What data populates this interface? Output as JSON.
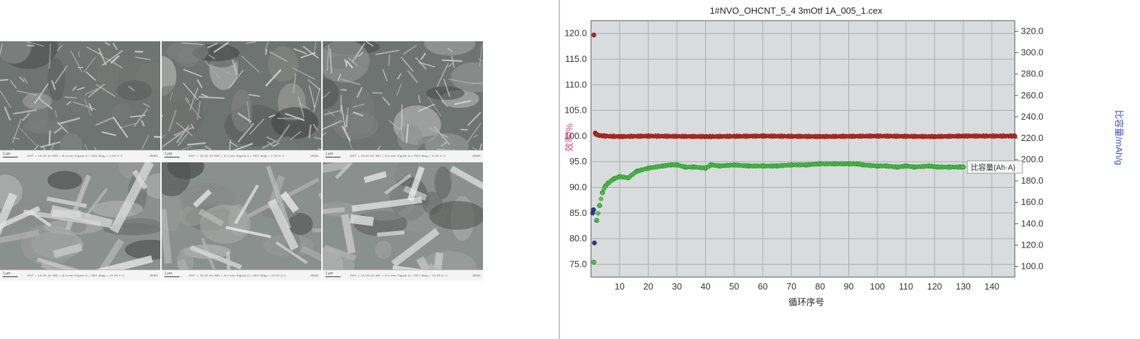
{
  "sem_panel": {
    "tiles": [
      {
        "scale_label": "1 μm",
        "meta": "EHT = 15.00 kV   WD = 8.4 mm   Signal A = SE2   Mag = 2.00 K X",
        "code": "ZEISS"
      },
      {
        "scale_label": "1 μm",
        "meta": "EHT = 15.00 kV   WD = 8.4 mm   Signal A = SE2   Mag = 2.00 K X",
        "code": "ZEISS"
      },
      {
        "scale_label": "1 μm",
        "meta": "EHT = 15.00 kV   WD = 8.4 mm   Signal A = SE2   Mag = 2.00 K X",
        "code": "ZEISS"
      },
      {
        "scale_label": "1 μm",
        "meta": "EHT = 15.00 kV   WD = 8.4 mm   Signal A = SE2   Mag = 10.00 K X",
        "code": "ZEISS"
      },
      {
        "scale_label": "1 μm",
        "meta": "EHT = 15.00 kV   WD = 8.4 mm   Signal A = SE2   Mag = 10.00 K X",
        "code": "ZEISS"
      },
      {
        "scale_label": "1 μm",
        "meta": "EHT = 15.00 kV   WD = 8.4 mm   Signal A = SE2   Mag = 10.00 K X",
        "code": "ZEISS"
      }
    ]
  },
  "chart_data": {
    "type": "scatter",
    "title": "1#NVO_OHCNT_5_4 3mOtf 1A_005_1.cex",
    "xlabel": "循环序号",
    "ylabel_left": "效率/%",
    "ylabel_right": "比容量/mAh/g",
    "xlim": [
      0,
      148
    ],
    "ylim_left": [
      72.5,
      122.5
    ],
    "ylim_right": [
      90,
      330
    ],
    "x_ticks": [
      10,
      20,
      30,
      40,
      50,
      60,
      70,
      80,
      90,
      100,
      110,
      120,
      130,
      140
    ],
    "y_ticks_left": [
      "75.0",
      "80.0",
      "85.0",
      "90.0",
      "95.0",
      "100.0",
      "105.0",
      "110.0",
      "115.0",
      "120.0"
    ],
    "y_ticks_right": [
      "100.0",
      "120.0",
      "140.0",
      "160.0",
      "180.0",
      "200.0",
      "220.0",
      "240.0",
      "260.0",
      "280.0",
      "300.0",
      "320.0"
    ],
    "grid": true,
    "plot_bg": "#d8dcdc",
    "series": [
      {
        "name": "",
        "axis": "left",
        "color": "#c0201a",
        "x": [
          1,
          1.5,
          2,
          3,
          5,
          10,
          20,
          40,
          60,
          80,
          100,
          120,
          130,
          148
        ],
        "y": [
          119.7,
          100.6,
          100.3,
          100.1,
          100.0,
          99.9,
          100.0,
          99.9,
          100.0,
          99.9,
          100.0,
          99.9,
          100.0,
          100.0
        ]
      },
      {
        "name": "",
        "axis": "right",
        "color": "#3cc83c",
        "x": [
          1,
          2,
          3,
          4,
          5,
          6,
          8,
          10,
          13,
          16,
          20,
          25,
          28,
          30,
          33,
          36,
          40,
          42,
          45,
          50,
          55,
          60,
          65,
          70,
          75,
          80,
          85,
          90,
          93,
          95,
          100,
          103,
          107,
          110,
          113,
          118,
          121,
          125,
          129,
          130
        ],
        "y": [
          104,
          143,
          157,
          169,
          175,
          178,
          182,
          184,
          183,
          189,
          192,
          194,
          195,
          195,
          193,
          193,
          192,
          195,
          194,
          195,
          194,
          194,
          194,
          195,
          195,
          196,
          196,
          196,
          196,
          195,
          194,
          194,
          193,
          194,
          193,
          194,
          193,
          193,
          193,
          193
        ]
      },
      {
        "name": "",
        "axis": "right",
        "color": "#2a3a9a",
        "x": [
          0.6,
          0.9,
          1.2
        ],
        "y": [
          150,
          153,
          122
        ]
      }
    ],
    "legend": {
      "label": "比容量(Ah·A)",
      "placement": "right-end-of-series"
    }
  }
}
